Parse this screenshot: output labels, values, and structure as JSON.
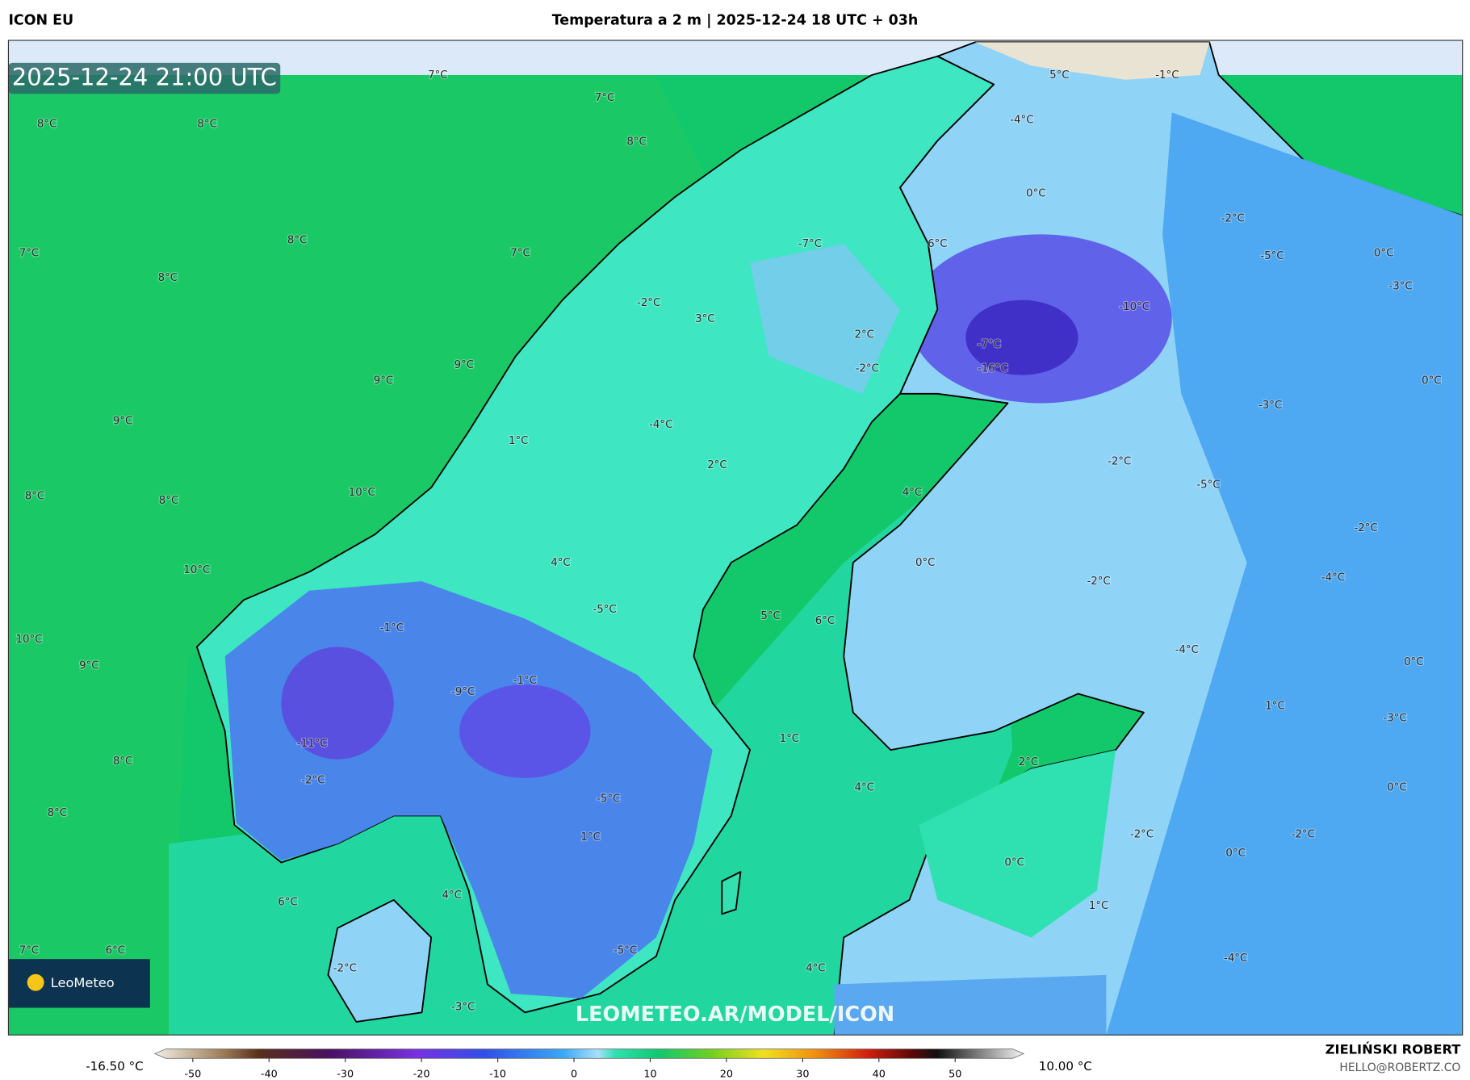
{
  "header": {
    "model": "ICON EU",
    "title": "Temperatura a 2 m | 2025-12-24 18 UTC + 03h"
  },
  "map": {
    "valid_time": "2025-12-24 21:00 UTC",
    "watermark": "LEOMETEO.AR/MODEL/ICON",
    "logo": "LeoMeteo",
    "labels": [
      "7°C",
      "7°C",
      "8°C",
      "8°C",
      "8°C",
      "8°C",
      "7°C",
      "8°C",
      "7°C",
      "9°C",
      "9°C",
      "9°C",
      "8°C",
      "8°C",
      "10°C",
      "10°C",
      "10°C",
      "9°C",
      "8°C",
      "8°C",
      "6°C",
      "7°C",
      "6°C",
      "-2°C",
      "-3°C",
      "4°C",
      "4°C",
      "-5°C",
      "1°C",
      "-5°C",
      "4°C",
      "2°C",
      "-1°C",
      "-9°C",
      "-11°C",
      "-2°C",
      "-1°C",
      "-5°C",
      "5°C",
      "6°C",
      "4°C",
      "0°C",
      "4°C",
      "1°C",
      "2°C",
      "-4°C",
      "-2°C",
      "3°C",
      "-7°C",
      "6°C",
      "2°C",
      "-2°C",
      "-7°C",
      "-16°C",
      "-10°C",
      "0°C",
      "-4°C",
      "5°C",
      "-1°C",
      "-2°C",
      "-5°C",
      "0°C",
      "-3°C",
      "0°C",
      "-3°C",
      "-2°C",
      "-5°C",
      "-2°C",
      "-2°C",
      "-4°C",
      "-4°C",
      "0°C",
      "1°C",
      "-3°C",
      "0°C",
      "-2°C",
      "-2°C",
      "0°C",
      "0°C",
      "1°C",
      "-4°C",
      "1°C"
    ]
  },
  "colorbar": {
    "min_label": "-16.50 °C",
    "max_label": "10.00 °C",
    "lim": [
      -55,
      59
    ],
    "ticks": [
      -50,
      -40,
      -30,
      -20,
      -10,
      0,
      10,
      20,
      30,
      40,
      50
    ]
  },
  "footer": {
    "author": "ZIELIŃSKI ROBERT",
    "email": "HELLO@ROBERTZ.CO"
  }
}
